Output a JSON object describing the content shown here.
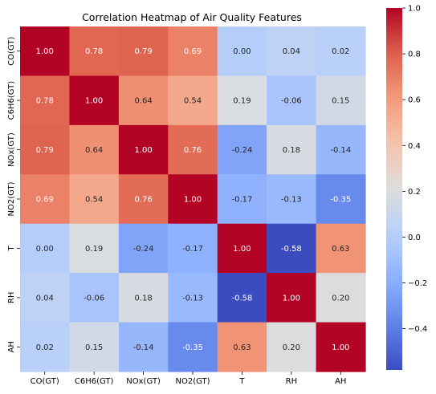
{
  "chart_data": {
    "type": "heatmap",
    "title": "Correlation Heatmap of Air Quality Features",
    "xlabel": "",
    "ylabel": "",
    "x_labels": [
      "CO(GT)",
      "C6H6(GT)",
      "NOx(GT)",
      "NO2(GT)",
      "T",
      "RH",
      "AH"
    ],
    "y_labels": [
      "CO(GT)",
      "C6H6(GT)",
      "NOx(GT)",
      "NO2(GT)",
      "T",
      "RH",
      "AH"
    ],
    "values": [
      [
        1.0,
        0.78,
        0.79,
        0.69,
        0.0,
        0.04,
        0.02
      ],
      [
        0.78,
        1.0,
        0.64,
        0.54,
        0.19,
        -0.06,
        0.15
      ],
      [
        0.79,
        0.64,
        1.0,
        0.76,
        -0.24,
        0.18,
        -0.14
      ],
      [
        0.69,
        0.54,
        0.76,
        1.0,
        -0.17,
        -0.13,
        -0.35
      ],
      [
        0.0,
        0.19,
        -0.24,
        -0.17,
        1.0,
        -0.58,
        0.63
      ],
      [
        0.04,
        -0.06,
        0.18,
        -0.13,
        -0.58,
        1.0,
        0.2
      ],
      [
        0.02,
        0.15,
        -0.14,
        -0.35,
        0.63,
        0.2,
        1.0
      ]
    ],
    "colormap": "coolwarm",
    "vmin": -0.58,
    "vmax": 1.0,
    "colorbar_ticks": [
      1.0,
      0.8,
      0.6,
      0.4,
      0.2,
      0.0,
      -0.2,
      -0.4
    ],
    "colorbar_tick_labels": [
      "1.0",
      "0.8",
      "0.6",
      "0.4",
      "0.2",
      "0.0",
      "−0.2",
      "−0.4"
    ],
    "annotation_format": "0.00",
    "grid": false,
    "legend": "colorbar-right"
  }
}
